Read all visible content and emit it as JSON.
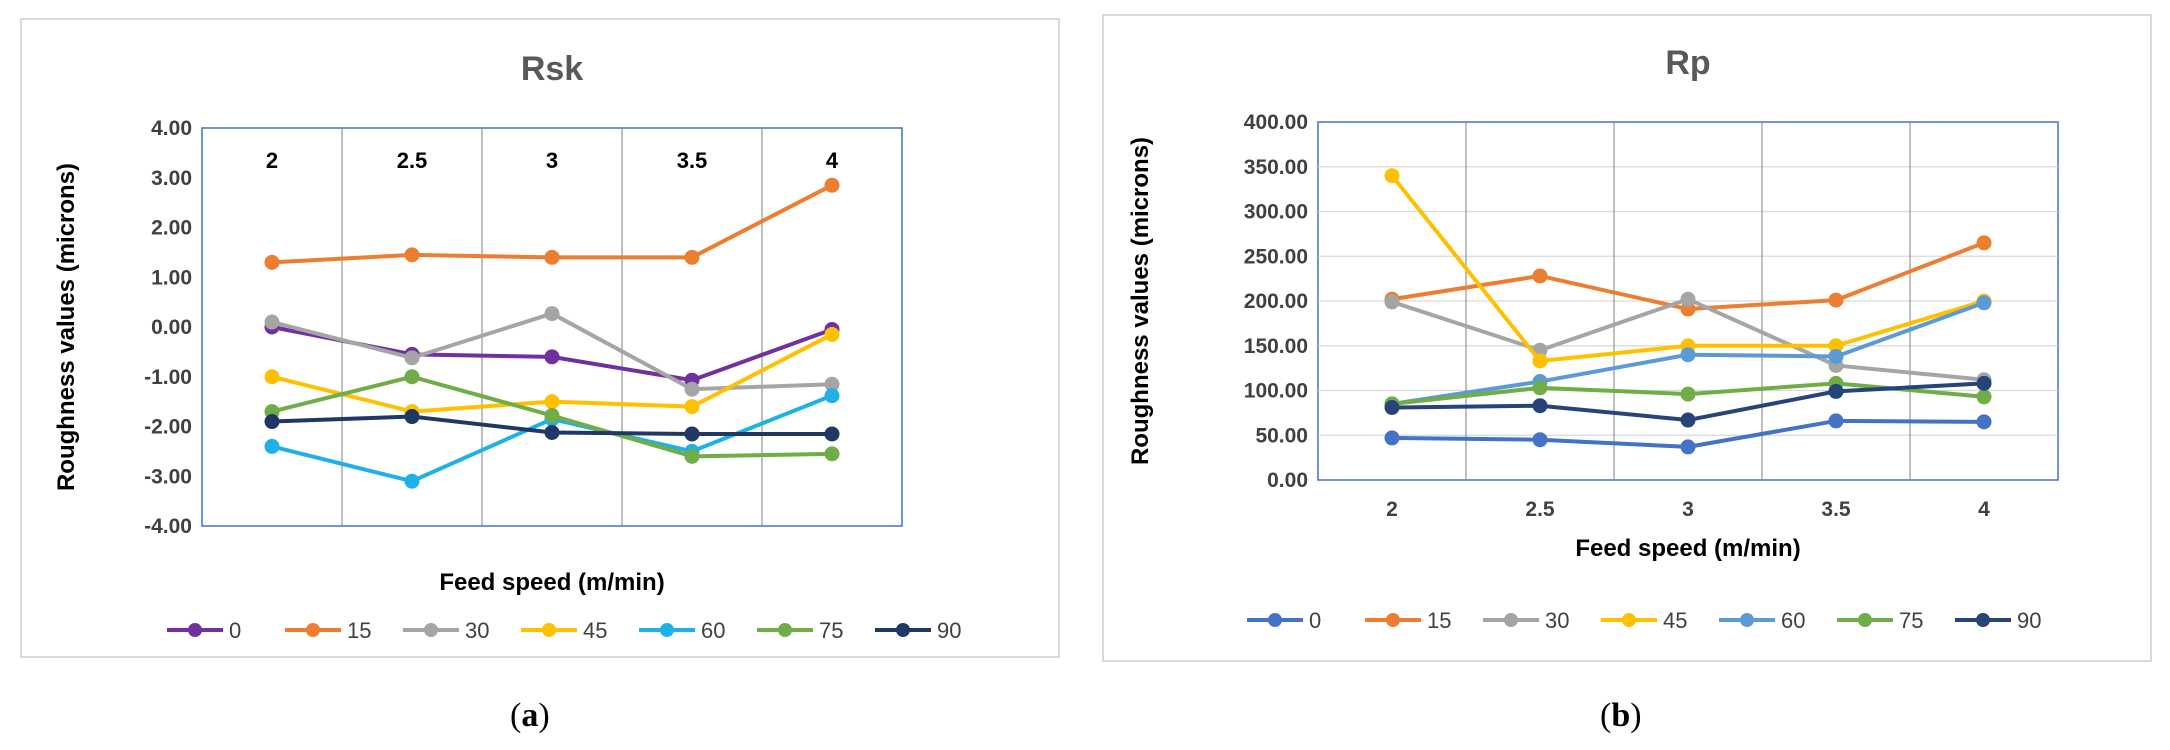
{
  "captions": {
    "a": "a",
    "b": "b"
  },
  "chart_data": [
    {
      "type": "line",
      "title": "Rsk",
      "xlabel": "Feed speed (m/min)",
      "ylabel": "Roughness values (microns)",
      "categories": [
        "2",
        "2.5",
        "3",
        "3.5",
        "4"
      ],
      "ylim": [
        -4,
        4
      ],
      "yticks": [
        -4,
        -3,
        -2,
        -1,
        0,
        1,
        2,
        3,
        4
      ],
      "ytick_labels": [
        "-4.00",
        "-3.00",
        "-2.00",
        "-1.00",
        "0.00",
        "1.00",
        "2.00",
        "3.00",
        "4.00"
      ],
      "grid": "vertical",
      "legend": "bottom",
      "series": [
        {
          "name": "0",
          "color": "#7030a0",
          "values": [
            0.0,
            -0.55,
            -0.6,
            -1.07,
            -0.05
          ]
        },
        {
          "name": "15",
          "color": "#ed7d31",
          "values": [
            1.3,
            1.45,
            1.4,
            1.4,
            2.85
          ]
        },
        {
          "name": "30",
          "color": "#a5a5a5",
          "values": [
            0.1,
            -0.62,
            0.27,
            -1.25,
            -1.15
          ]
        },
        {
          "name": "45",
          "color": "#ffc000",
          "values": [
            -1.0,
            -1.7,
            -1.5,
            -1.6,
            -0.15
          ]
        },
        {
          "name": "60",
          "color": "#1fb0e8",
          "values": [
            -2.4,
            -3.1,
            -1.85,
            -2.5,
            -1.38
          ]
        },
        {
          "name": "75",
          "color": "#70ad47",
          "values": [
            -1.7,
            -1.0,
            -1.78,
            -2.6,
            -2.55
          ]
        },
        {
          "name": "90",
          "color": "#1f3864",
          "values": [
            -1.9,
            -1.8,
            -2.12,
            -2.15,
            -2.15
          ]
        }
      ]
    },
    {
      "type": "line",
      "title": "Rp",
      "xlabel": "Feed speed (m/min)",
      "ylabel": "Roughness values (microns)",
      "categories": [
        "2",
        "2.5",
        "3",
        "3.5",
        "4"
      ],
      "ylim": [
        0,
        400
      ],
      "yticks": [
        0,
        50,
        100,
        150,
        200,
        250,
        300,
        350,
        400
      ],
      "ytick_labels": [
        "0.00",
        "50.00",
        "100.00",
        "150.00",
        "200.00",
        "250.00",
        "300.00",
        "350.00",
        "400.00"
      ],
      "grid": "both",
      "legend": "bottom",
      "series": [
        {
          "name": "0",
          "color": "#4472c4",
          "values": [
            47,
            45,
            37,
            66,
            65
          ]
        },
        {
          "name": "15",
          "color": "#ed7d31",
          "values": [
            202,
            228,
            191,
            201,
            265
          ]
        },
        {
          "name": "30",
          "color": "#a5a5a5",
          "values": [
            199,
            145,
            202,
            128,
            112
          ]
        },
        {
          "name": "45",
          "color": "#ffc000",
          "values": [
            340,
            133,
            150,
            150,
            200
          ]
        },
        {
          "name": "60",
          "color": "#5b9bd5",
          "values": [
            85,
            110,
            140,
            138,
            198
          ]
        },
        {
          "name": "75",
          "color": "#70ad47",
          "values": [
            85,
            103,
            96,
            108,
            93
          ]
        },
        {
          "name": "90",
          "color": "#264478",
          "values": [
            81,
            83,
            67,
            99,
            108
          ]
        }
      ]
    }
  ]
}
